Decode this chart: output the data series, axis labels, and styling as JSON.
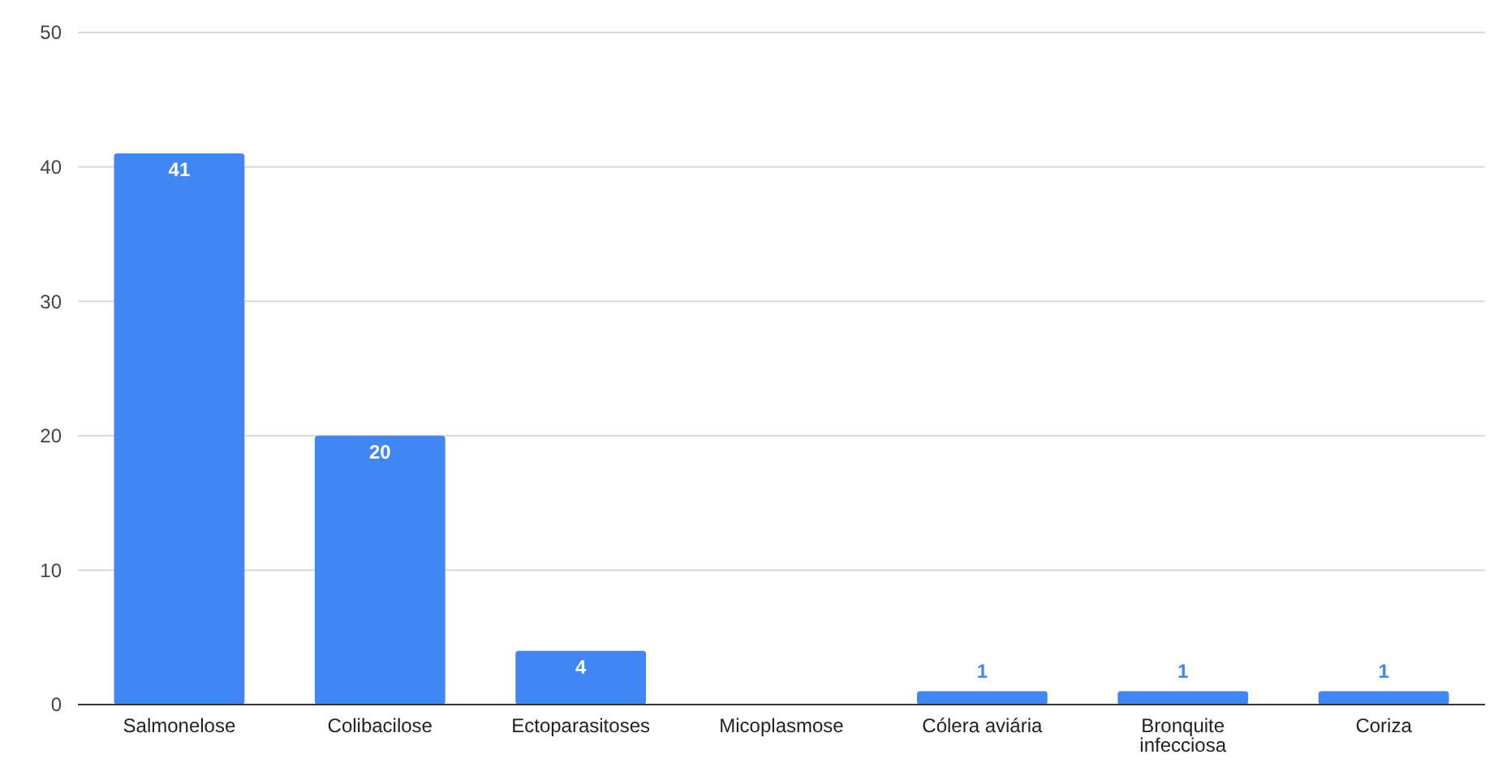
{
  "chart_data": {
    "type": "bar",
    "categories": [
      "Salmonelose",
      "Colibacilose",
      "Ectoparasitoses",
      "Micoplasmose",
      "Cólera aviária",
      "Bronquite infecciosa",
      "Coriza"
    ],
    "values": [
      41,
      20,
      4,
      0,
      1,
      1,
      1
    ],
    "value_labels": [
      "41",
      "20",
      "4",
      null,
      "1",
      "1",
      "1"
    ],
    "color": "#4285f4",
    "ylim": [
      0,
      50
    ],
    "yticks": [
      0,
      10,
      20,
      30,
      40,
      50
    ],
    "grid": "y"
  }
}
